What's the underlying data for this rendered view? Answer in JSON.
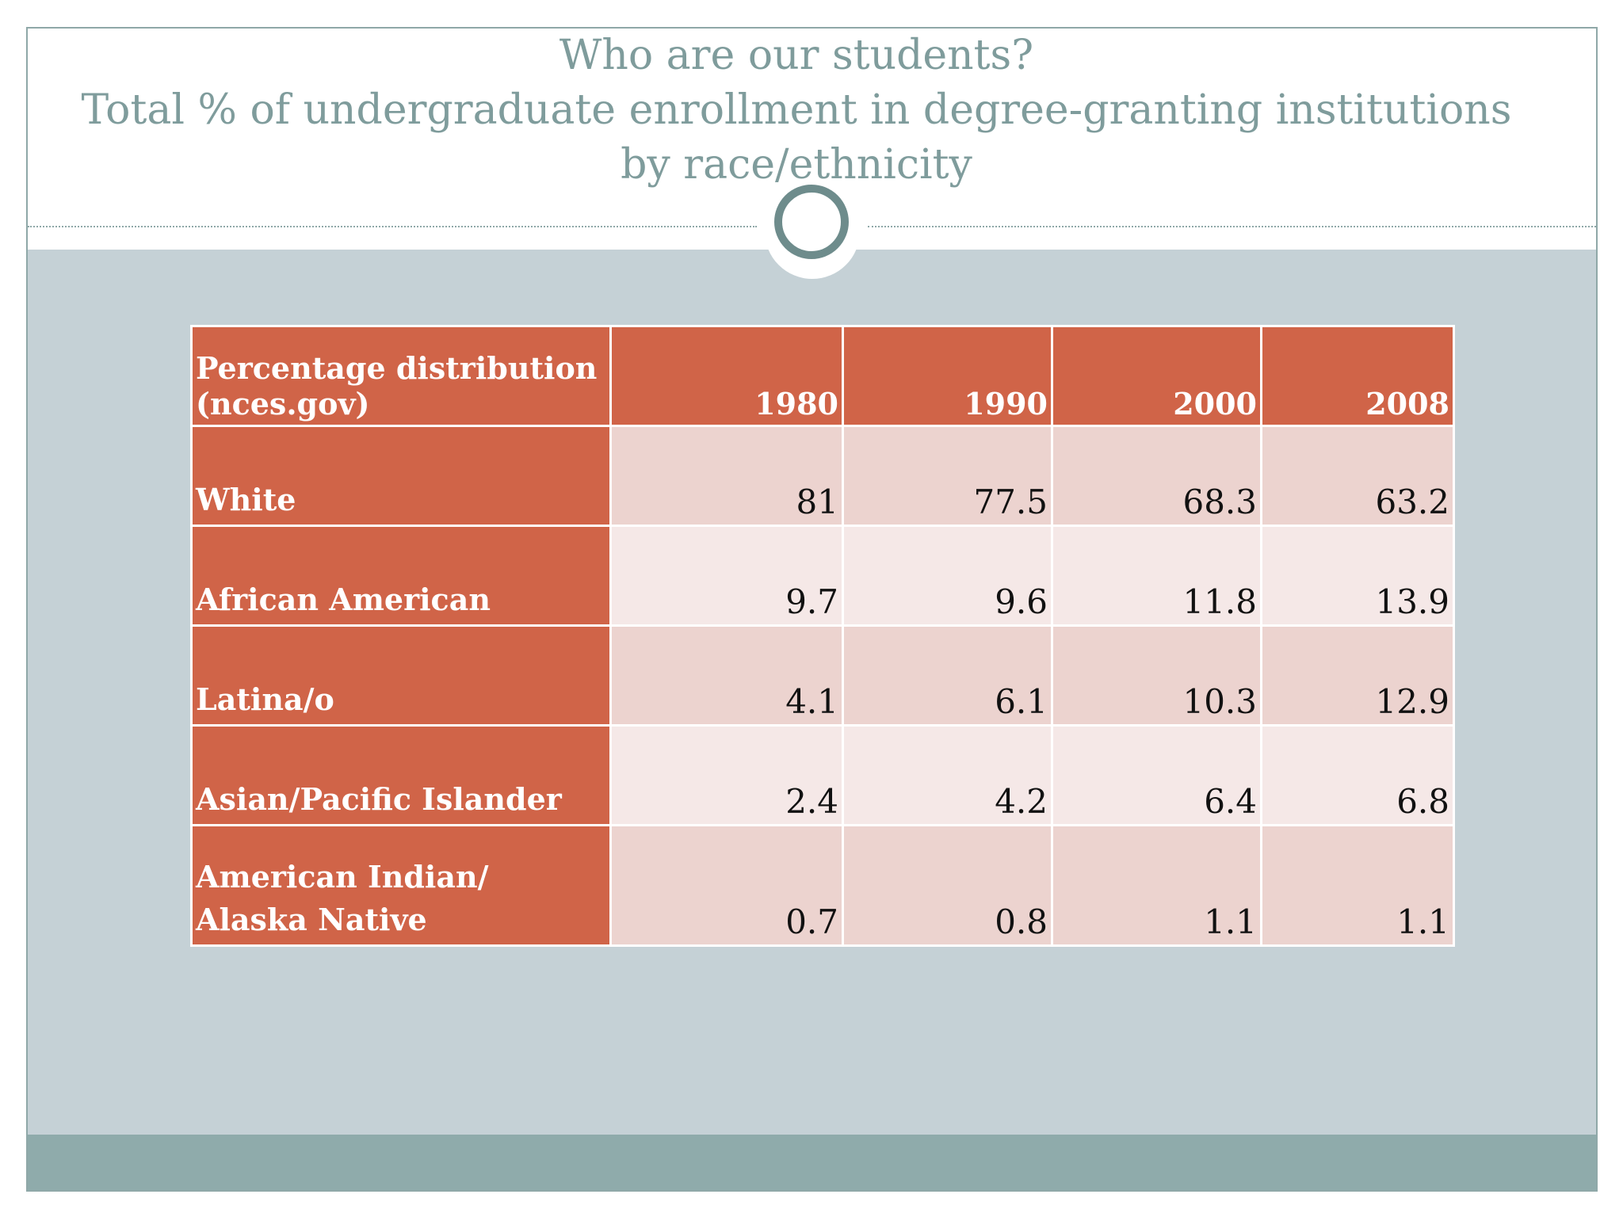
{
  "title": {
    "line1": "Who are our students?",
    "line2": "Total % of undergraduate enrollment in degree-granting institutions",
    "line3": "by race/ethnicity"
  },
  "table": {
    "corner": [
      "Percentage distribution",
      "(nces.gov)"
    ],
    "years": [
      "1980",
      "1990",
      "2000",
      "2008"
    ],
    "rows": [
      {
        "label": "White",
        "values": [
          "81",
          "77.5",
          "68.3",
          "63.2"
        ]
      },
      {
        "label": "African American",
        "values": [
          "9.7",
          "9.6",
          "11.8",
          "13.9"
        ]
      },
      {
        "label": "Latina/o",
        "values": [
          "4.1",
          "6.1",
          "10.3",
          "12.9"
        ]
      },
      {
        "label": "Asian/Pacific Islander",
        "values": [
          "2.4",
          "4.2",
          "6.4",
          "6.8"
        ]
      },
      {
        "label": "American Indian/ Alaska Native",
        "values": [
          "0.7",
          "0.8",
          "1.1",
          "1.1"
        ]
      }
    ]
  },
  "colors": {
    "header_fill": "#d06448",
    "row_dark": "#ecd3cf",
    "row_light": "#f5e8e7",
    "background": "#c5d1d6",
    "title_text": "#7f9c9c"
  }
}
